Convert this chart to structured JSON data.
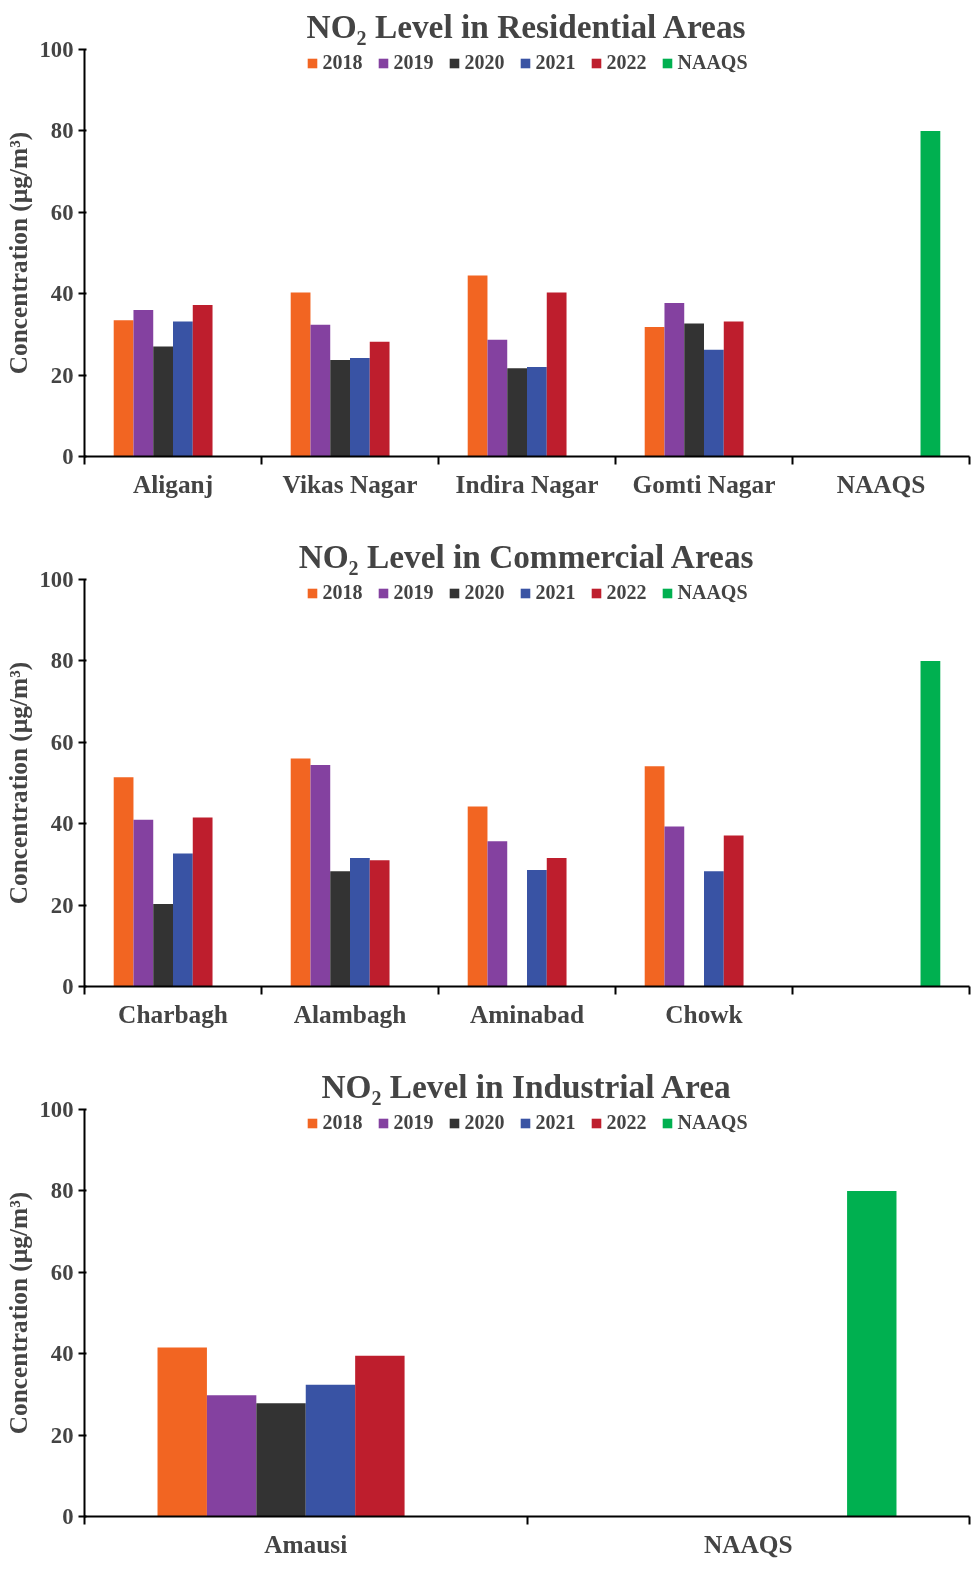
{
  "chart_data": [
    {
      "type": "bar",
      "title": "NO₂ Level in Residential Areas",
      "ylabel": "Concentration (µg/m³)",
      "categories": [
        "Aliganj",
        "Vikas Nagar",
        "Indira Nagar",
        "Gomti Nagar",
        "NAAQS"
      ],
      "ylim": [
        0,
        100
      ],
      "yticks": [
        0,
        20,
        40,
        60,
        80,
        100
      ],
      "grid": false,
      "legend": "top",
      "series": [
        {
          "name": "2018",
          "color": "#f26522",
          "values": [
            33.5,
            40.3,
            44.5,
            31.8,
            null
          ]
        },
        {
          "name": "2019",
          "color": "#8441a0",
          "values": [
            36,
            32.4,
            28.7,
            37.7,
            null
          ]
        },
        {
          "name": "2020",
          "color": "#333333",
          "values": [
            27,
            23.7,
            21.7,
            32.7,
            null
          ]
        },
        {
          "name": "2021",
          "color": "#3953a4",
          "values": [
            33.2,
            24.2,
            22,
            26.2,
            null
          ]
        },
        {
          "name": "2022",
          "color": "#be1e2d",
          "values": [
            37.2,
            28.2,
            40.3,
            33.2,
            null
          ]
        },
        {
          "name": "NAAQS",
          "color": "#00b050",
          "values": [
            null,
            null,
            null,
            null,
            80
          ]
        }
      ]
    },
    {
      "type": "bar",
      "title": "NO₂ Level in Commercial Areas",
      "ylabel": "Concentration (µg/m³)",
      "categories": [
        "Charbagh",
        "Alambagh",
        "Aminabad",
        "Chowk",
        null
      ],
      "ylim": [
        0,
        100
      ],
      "yticks": [
        0,
        20,
        40,
        60,
        80,
        100
      ],
      "grid": false,
      "legend": "top",
      "series": [
        {
          "name": "2018",
          "color": "#f26522",
          "values": [
            51.4,
            56,
            44.2,
            54.1,
            null
          ]
        },
        {
          "name": "2019",
          "color": "#8441a0",
          "values": [
            41,
            54.4,
            35.7,
            39.3,
            null
          ]
        },
        {
          "name": "2020",
          "color": "#333333",
          "values": [
            20.3,
            28.3,
            null,
            null,
            null
          ]
        },
        {
          "name": "2021",
          "color": "#3953a4",
          "values": [
            32.7,
            31.6,
            28.6,
            28.3,
            null
          ]
        },
        {
          "name": "2022",
          "color": "#be1e2d",
          "values": [
            41.5,
            31,
            31.6,
            37.1,
            null
          ]
        },
        {
          "name": "NAAQS",
          "color": "#00b050",
          "values": [
            null,
            null,
            null,
            null,
            80
          ]
        }
      ]
    },
    {
      "type": "bar",
      "title": "NO₂ Level in Industrial Area",
      "ylabel": "Concentration (µg/m³)",
      "categories": [
        "Amausi",
        "NAAQS"
      ],
      "ylim": [
        0,
        100
      ],
      "yticks": [
        0,
        20,
        40,
        60,
        80,
        100
      ],
      "grid": false,
      "legend": "top",
      "series": [
        {
          "name": "2018",
          "color": "#f26522",
          "values": [
            41.5,
            null
          ]
        },
        {
          "name": "2019",
          "color": "#8441a0",
          "values": [
            29.8,
            null
          ]
        },
        {
          "name": "2020",
          "color": "#333333",
          "values": [
            27.8,
            null
          ]
        },
        {
          "name": "2021",
          "color": "#3953a4",
          "values": [
            32.4,
            null
          ]
        },
        {
          "name": "2022",
          "color": "#be1e2d",
          "values": [
            39.5,
            null
          ]
        },
        {
          "name": "NAAQS",
          "color": "#00b050",
          "values": [
            null,
            80
          ]
        }
      ]
    }
  ]
}
